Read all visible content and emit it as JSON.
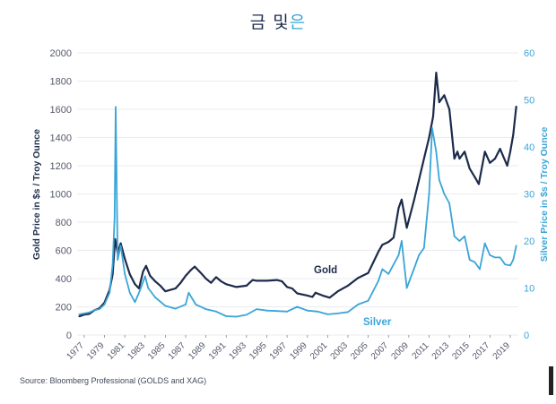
{
  "title": {
    "part1": "금 및",
    "part2": "은"
  },
  "source": "Source: Bloomberg Professional (GOLDS and XAG)",
  "colors": {
    "gold": "#1d2b4a",
    "silver": "#3aa5d8"
  },
  "chart_data": {
    "type": "line",
    "title": "금 및은",
    "ylabel_left": "Gold Price in $s / Troy Ounce",
    "ylabel_right": "Silver Price in $s / Troy Ounce",
    "xlim": [
      1976.3,
      2019.8
    ],
    "ylim_left": [
      0,
      2000
    ],
    "ylim_right": [
      0,
      60
    ],
    "yticks_left": [
      0,
      200,
      400,
      600,
      800,
      1000,
      1200,
      1400,
      1600,
      1800,
      2000
    ],
    "yticks_right": [
      0,
      10,
      20,
      30,
      40,
      50,
      60
    ],
    "xticks": [
      1977,
      1979,
      1981,
      1983,
      1985,
      1987,
      1989,
      1991,
      1993,
      1995,
      1997,
      1999,
      2001,
      2003,
      2005,
      2007,
      2009,
      2011,
      2013,
      2015,
      2017,
      2019
    ],
    "grid": true,
    "series": [
      {
        "name": "Gold",
        "axis": "left",
        "x": [
          1976.5,
          1977.0,
          1977.5,
          1978.0,
          1978.5,
          1979.0,
          1979.5,
          1979.8,
          1980.05,
          1980.3,
          1980.6,
          1981.0,
          1981.5,
          1982.0,
          1982.4,
          1982.8,
          1983.1,
          1983.5,
          1984.0,
          1984.5,
          1985.0,
          1985.5,
          1986.0,
          1986.5,
          1987.0,
          1987.5,
          1987.9,
          1988.5,
          1989.0,
          1989.5,
          1990.0,
          1990.5,
          1991.0,
          1992.0,
          1993.0,
          1993.6,
          1994.0,
          1995.0,
          1996.0,
          1996.5,
          1997.0,
          1997.5,
          1998.0,
          1999.0,
          1999.5,
          1999.8,
          2000.5,
          2001.2,
          2002.0,
          2003.0,
          2004.0,
          2005.0,
          2006.0,
          2006.4,
          2007.0,
          2007.5,
          2008.0,
          2008.3,
          2008.8,
          2009.5,
          2010.0,
          2010.5,
          2011.0,
          2011.4,
          2011.7,
          2012.0,
          2012.5,
          2013.0,
          2013.5,
          2013.8,
          2014.0,
          2014.5,
          2015.0,
          2015.5,
          2015.9,
          2016.5,
          2017.0,
          2017.5,
          2018.0,
          2018.7,
          2019.0,
          2019.3,
          2019.6
        ],
        "y": [
          132,
          145,
          150,
          175,
          190,
          230,
          320,
          430,
          680,
          580,
          650,
          540,
          430,
          360,
          330,
          450,
          490,
          420,
          380,
          350,
          310,
          320,
          330,
          370,
          420,
          460,
          485,
          440,
          400,
          370,
          410,
          380,
          360,
          340,
          350,
          390,
          385,
          385,
          390,
          380,
          340,
          330,
          295,
          280,
          270,
          300,
          280,
          265,
          310,
          350,
          405,
          440,
          590,
          640,
          660,
          690,
          900,
          960,
          760,
          950,
          1100,
          1250,
          1400,
          1550,
          1860,
          1650,
          1700,
          1600,
          1250,
          1300,
          1250,
          1300,
          1180,
          1120,
          1070,
          1300,
          1220,
          1250,
          1320,
          1200,
          1300,
          1420,
          1620
        ]
      },
      {
        "name": "Silver",
        "axis": "right",
        "x": [
          1976.5,
          1977.0,
          1977.5,
          1978.0,
          1978.5,
          1979.0,
          1979.5,
          1979.8,
          1980.0,
          1980.1,
          1980.3,
          1980.6,
          1981.0,
          1981.5,
          1982.0,
          1982.5,
          1983.0,
          1983.3,
          1984.0,
          1985.0,
          1986.0,
          1987.0,
          1987.3,
          1988.0,
          1989.0,
          1990.0,
          1991.0,
          1992.0,
          1993.0,
          1994.0,
          1995.0,
          1996.0,
          1997.0,
          1998.0,
          1999.0,
          2000.0,
          2001.0,
          2002.0,
          2003.0,
          2004.0,
          2005.0,
          2006.0,
          2006.4,
          2007.0,
          2008.0,
          2008.3,
          2008.8,
          2009.5,
          2010.0,
          2010.5,
          2011.0,
          2011.3,
          2011.7,
          2012.0,
          2012.5,
          2013.0,
          2013.5,
          2014.0,
          2014.5,
          2015.0,
          2015.5,
          2016.0,
          2016.5,
          2017.0,
          2017.5,
          2018.0,
          2018.5,
          2019.0,
          2019.3,
          2019.6
        ],
        "y": [
          4.4,
          4.6,
          4.8,
          5.3,
          5.5,
          6.5,
          9.0,
          15.0,
          25.0,
          48.5,
          16.0,
          19.0,
          13.0,
          9.0,
          7.0,
          9.5,
          12.5,
          10.0,
          8.0,
          6.2,
          5.6,
          6.5,
          9.0,
          6.5,
          5.5,
          5.0,
          4.0,
          3.9,
          4.3,
          5.5,
          5.2,
          5.1,
          5.0,
          6.0,
          5.2,
          5.0,
          4.4,
          4.6,
          4.9,
          6.5,
          7.3,
          11.5,
          14.0,
          13.0,
          17.0,
          20.0,
          10.0,
          14.0,
          17.0,
          18.5,
          30.0,
          44.0,
          39.0,
          33.0,
          30.0,
          28.0,
          21.0,
          20.0,
          21.0,
          16.0,
          15.5,
          14.0,
          19.5,
          17.0,
          16.5,
          16.5,
          15.0,
          14.8,
          16.0,
          19.0
        ]
      }
    ],
    "annotations": [
      "Gold",
      "Silver"
    ]
  }
}
